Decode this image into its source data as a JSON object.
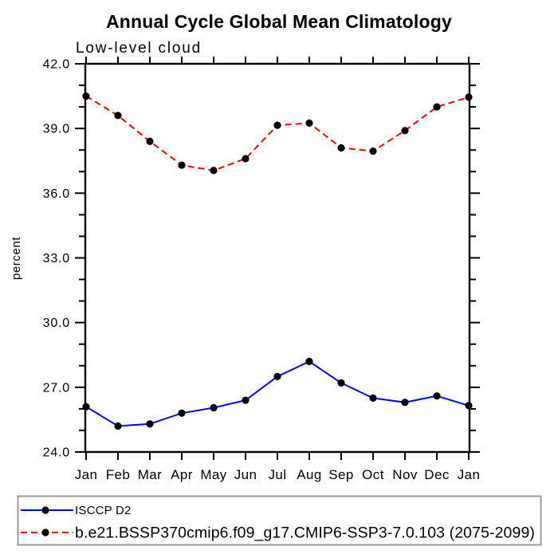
{
  "chart_data": {
    "type": "line",
    "title": "Annual Cycle Global Mean Climatology",
    "subtitle": "Low-level cloud",
    "ylabel": "percent",
    "x_tick_labels": [
      "Jan",
      "Feb",
      "Mar",
      "Apr",
      "May",
      "Jun",
      "Jul",
      "Aug",
      "Sep",
      "Oct",
      "Nov",
      "Dec",
      "Jan"
    ],
    "y_tick_labels": [
      "24.0",
      "27.0",
      "30.0",
      "33.0",
      "36.0",
      "39.0",
      "42.0"
    ],
    "ylim": [
      24.0,
      42.0
    ],
    "y_major_step": 3.0,
    "y_minor_step": 1.0,
    "grid": false,
    "frame": "box-with-outward-ticks",
    "legend_position": "bottom-left",
    "colors": {
      "series_blue": "#0000ff",
      "series_red": "#ff0000",
      "marker_black": "#000000",
      "legend_border_gray": "#9a9a9a"
    },
    "series": [
      {
        "name": "ISCCP D2",
        "line_color": "#0000ff",
        "line_style": "solid",
        "marker": "filled-circle",
        "marker_color": "#000000",
        "values": [
          26.1,
          25.2,
          25.3,
          25.8,
          26.05,
          26.4,
          27.5,
          28.2,
          27.2,
          26.5,
          26.3,
          26.6,
          26.15
        ]
      },
      {
        "name": "b.e21.BSSP370cmip6.f09_g17.CMIP6-SSP3-7.0.103 (2075-2099)",
        "line_color": "#ff0000",
        "line_style": "dashed",
        "marker": "filled-circle",
        "marker_color": "#000000",
        "values": [
          40.5,
          39.6,
          38.4,
          37.3,
          37.05,
          37.6,
          39.15,
          39.25,
          38.1,
          37.95,
          38.9,
          40.0,
          40.45
        ]
      }
    ]
  }
}
